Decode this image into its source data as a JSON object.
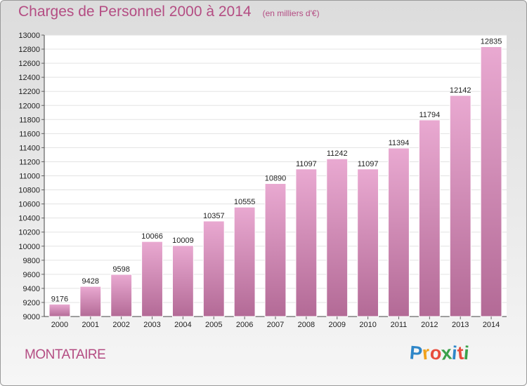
{
  "title": "Charges de Personnel 2000 à 2014",
  "subtitle": "(en milliers d'€)",
  "location": "MONTATAIRE",
  "logo": {
    "text": "Proxiti",
    "letters": [
      "P",
      "r",
      "o",
      "x",
      "i",
      "t",
      "i"
    ]
  },
  "colors": {
    "accent": "#b44d83",
    "bar_top": "#e9a9d1",
    "bar_bottom": "#b36a96",
    "logo": [
      "#2e86c8",
      "#f0a21e",
      "#e84c3d",
      "#3aa14a",
      "#2e86c8",
      "#e84c3d",
      "#3aa14a"
    ]
  },
  "chart_data": {
    "type": "bar",
    "categories": [
      "2000",
      "2001",
      "2002",
      "2003",
      "2004",
      "2005",
      "2006",
      "2007",
      "2008",
      "2009",
      "2010",
      "2011",
      "2012",
      "2013",
      "2014"
    ],
    "values": [
      9176,
      9428,
      9598,
      10066,
      10009,
      10357,
      10555,
      10890,
      11097,
      11242,
      11097,
      11394,
      11794,
      12142,
      12835
    ],
    "ylim": [
      9000,
      13000
    ],
    "yticks": [
      9000,
      9200,
      9400,
      9600,
      9800,
      10000,
      10200,
      10400,
      10600,
      10800,
      11000,
      11200,
      11400,
      11600,
      11800,
      12000,
      12200,
      12400,
      12600,
      12800,
      13000
    ],
    "grid": true,
    "title": "Charges de Personnel 2000 à 2014",
    "xlabel": "",
    "ylabel": ""
  }
}
